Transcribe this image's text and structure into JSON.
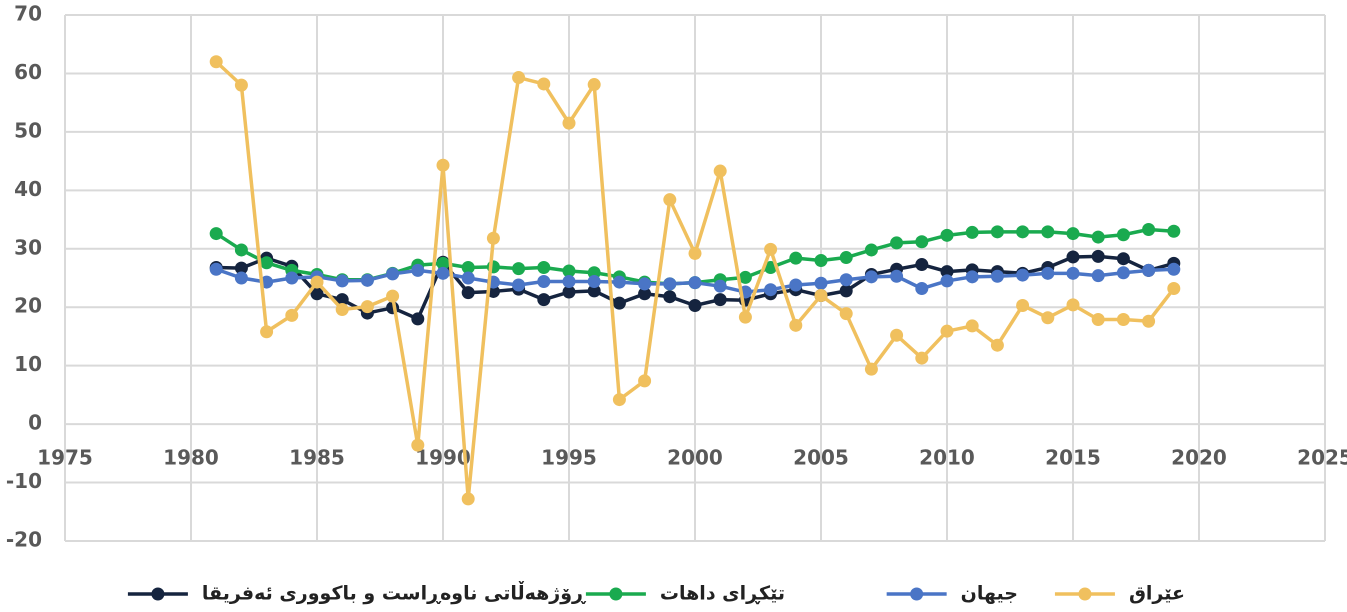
{
  "chart_data": {
    "type": "line",
    "x": [
      1981,
      1982,
      1983,
      1984,
      1985,
      1986,
      1987,
      1988,
      1989,
      1990,
      1991,
      1992,
      1993,
      1994,
      1995,
      1996,
      1997,
      1998,
      1999,
      2000,
      2001,
      2002,
      2003,
      2004,
      2005,
      2006,
      2007,
      2008,
      2009,
      2010,
      2011,
      2012,
      2013,
      2014,
      2015,
      2016,
      2017,
      2018,
      2019
    ],
    "series": [
      {
        "name": "ڕۆژهەڵاتی ناوەڕاست و باکووری ئەفریقا",
        "color": "#15243f",
        "values": [
          26.8,
          26.7,
          28.4,
          27.0,
          22.3,
          21.3,
          19.0,
          19.9,
          18.0,
          27.7,
          22.5,
          22.7,
          23.1,
          21.3,
          22.6,
          22.8,
          20.7,
          22.3,
          21.8,
          20.3,
          21.3,
          21.2,
          22.3,
          23.0,
          22.0,
          22.8,
          25.6,
          26.5,
          27.3,
          26.1,
          26.4,
          26.1,
          25.8,
          26.8,
          28.6,
          28.7,
          28.3,
          26.3,
          27.5
        ]
      },
      {
        "name": "تێکڕای داهات",
        "color": "#1aaa4f",
        "values": [
          32.6,
          29.8,
          27.6,
          26.3,
          25.6,
          24.7,
          24.7,
          25.8,
          27.2,
          27.5,
          26.8,
          26.9,
          26.6,
          26.8,
          26.2,
          25.9,
          25.2,
          24.3,
          24.0,
          24.2,
          24.7,
          25.1,
          26.8,
          28.4,
          28.0,
          28.5,
          29.8,
          31.0,
          31.2,
          32.3,
          32.8,
          32.9,
          32.9,
          32.9,
          32.6,
          32.0,
          32.4,
          33.3,
          33.0
        ]
      },
      {
        "name": "جیهان",
        "color": "#4a75c6",
        "values": [
          26.5,
          25.0,
          24.3,
          25.0,
          25.2,
          24.5,
          24.6,
          25.7,
          26.3,
          25.8,
          25.0,
          24.3,
          23.8,
          24.4,
          24.4,
          24.4,
          24.3,
          24.0,
          24.0,
          24.2,
          23.6,
          22.6,
          23.0,
          23.8,
          24.1,
          24.7,
          25.2,
          25.3,
          23.2,
          24.5,
          25.2,
          25.3,
          25.5,
          25.8,
          25.8,
          25.4,
          25.9,
          26.3,
          26.5
        ]
      },
      {
        "name": "عێراق",
        "color": "#f0c05e",
        "values": [
          62,
          58,
          15.8,
          18.6,
          24.3,
          19.6,
          20.1,
          21.9,
          -3.6,
          44.3,
          -12.8,
          31.8,
          59.3,
          58.2,
          51.5,
          58.1,
          4.2,
          7.4,
          38.4,
          29.2,
          43.3,
          18.3,
          29.9,
          16.9,
          22.0,
          18.9,
          9.4,
          15.2,
          11.3,
          15.9,
          16.8,
          13.5,
          20.3,
          18.2,
          20.4,
          17.9,
          17.9,
          17.6,
          23.2
        ]
      }
    ],
    "xlim": [
      1975,
      2025
    ],
    "xticks": [
      1975,
      1980,
      1985,
      1990,
      1995,
      2000,
      2005,
      2010,
      2015,
      2020,
      2025
    ],
    "ylim": [
      -20,
      70
    ],
    "yticks": [
      -20,
      -10,
      0,
      10,
      20,
      30,
      40,
      50,
      60,
      70
    ],
    "grid": true,
    "legend": "bottom"
  }
}
